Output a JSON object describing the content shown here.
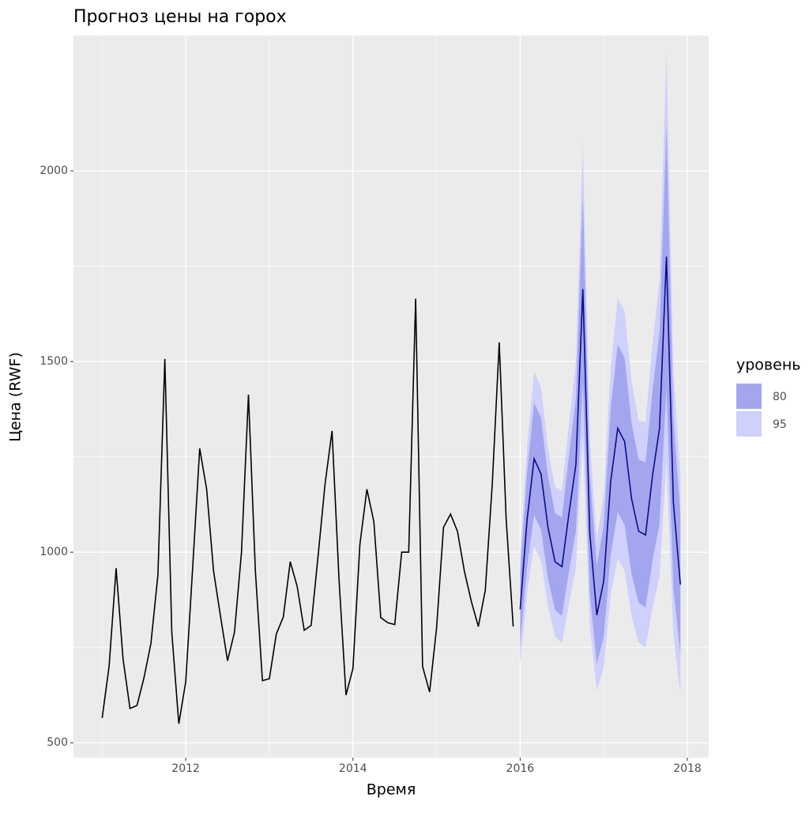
{
  "chart_data": {
    "type": "forecast",
    "title": "Прогноз цены на горох",
    "x_label": "Время",
    "y_label": "Цена (RWF)",
    "legend_title": "уровень",
    "xlim": [
      2010.657,
      2018.255
    ],
    "ylim": [
      461,
      2355
    ],
    "xticks": [
      2012,
      2014,
      2016,
      2018
    ],
    "yticks": [
      500,
      1000,
      1500,
      2000
    ],
    "grid": true,
    "history": {
      "color": "#000000",
      "x": [
        2011,
        2011.083,
        2011.167,
        2011.25,
        2011.333,
        2011.417,
        2011.5,
        2011.583,
        2011.667,
        2011.75,
        2011.833,
        2011.917,
        2012,
        2012.083,
        2012.167,
        2012.25,
        2012.333,
        2012.417,
        2012.5,
        2012.583,
        2012.667,
        2012.75,
        2012.833,
        2012.917,
        2013,
        2013.083,
        2013.167,
        2013.25,
        2013.333,
        2013.417,
        2013.5,
        2013.583,
        2013.667,
        2013.75,
        2013.833,
        2013.917,
        2014,
        2014.083,
        2014.167,
        2014.25,
        2014.333,
        2014.417,
        2014.5,
        2014.583,
        2014.667,
        2014.75,
        2014.833,
        2014.917,
        2015,
        2015.083,
        2015.167,
        2015.25,
        2015.333,
        2015.417,
        2015.5,
        2015.583,
        2015.667,
        2015.75,
        2015.833,
        2015.917
      ],
      "values": [
        565,
        700,
        958,
        720,
        590,
        598,
        670,
        760,
        940,
        1507,
        790,
        550,
        660,
        960,
        1272,
        1165,
        950,
        830,
        715,
        790,
        1000,
        1413,
        950,
        663,
        668,
        785,
        830,
        975,
        910,
        795,
        808,
        990,
        1180,
        1318,
        930,
        625,
        695,
        1020,
        1165,
        1080,
        828,
        815,
        810,
        1000,
        1000,
        1665,
        700,
        633,
        800,
        1065,
        1100,
        1055,
        950,
        870,
        805,
        900,
        1180,
        1550,
        1085,
        805
      ]
    },
    "forecast": {
      "color": "#0a0a8c",
      "x": [
        2016,
        2016.083,
        2016.167,
        2016.25,
        2016.333,
        2016.417,
        2016.5,
        2016.583,
        2016.667,
        2016.75,
        2016.833,
        2016.917,
        2017,
        2017.083,
        2017.167,
        2017.25,
        2017.333,
        2017.417,
        2017.5,
        2017.583,
        2017.667,
        2017.75,
        2017.833,
        2017.917
      ],
      "values": [
        850,
        1085,
        1245,
        1205,
        1065,
        975,
        962,
        1100,
        1230,
        1690,
        1050,
        835,
        925,
        1185,
        1325,
        1290,
        1140,
        1055,
        1045,
        1200,
        1325,
        1775,
        1130,
        915
      ]
    },
    "intervals": [
      {
        "name": "80",
        "color": "#a3a6ee",
        "lower": [
          757,
          961,
          1098,
          1058,
          931,
          848,
          833,
          948,
          1055,
          1443,
          893,
          706,
          779,
          993,
          1105,
          1071,
          942,
          867,
          855,
          977,
          1073,
          1431,
          906,
          730
        ],
        "upper": [
          944,
          1209,
          1392,
          1352,
          1199,
          1102,
          1091,
          1252,
          1405,
          1937,
          1208,
          964,
          1071,
          1377,
          1545,
          1509,
          1338,
          1243,
          1235,
          1423,
          1577,
          2119,
          1354,
          1100
        ]
      },
      {
        "name": "95",
        "color": "#cfd0fb",
        "lower": [
          705,
          893,
          1017,
          977,
          857,
          779,
          762,
          865,
          959,
          1308,
          806,
          636,
          698,
          888,
          984,
          950,
          832,
          764,
          750,
          854,
          935,
          1241,
          783,
          629
        ],
        "upper": [
          995,
          1277,
          1473,
          1433,
          1273,
          1171,
          1162,
          1335,
          1501,
          2072,
          1294,
          1034,
          1152,
          1482,
          1666,
          1630,
          1448,
          1346,
          1340,
          1546,
          1715,
          2309,
          1477,
          1201
        ]
      }
    ]
  }
}
